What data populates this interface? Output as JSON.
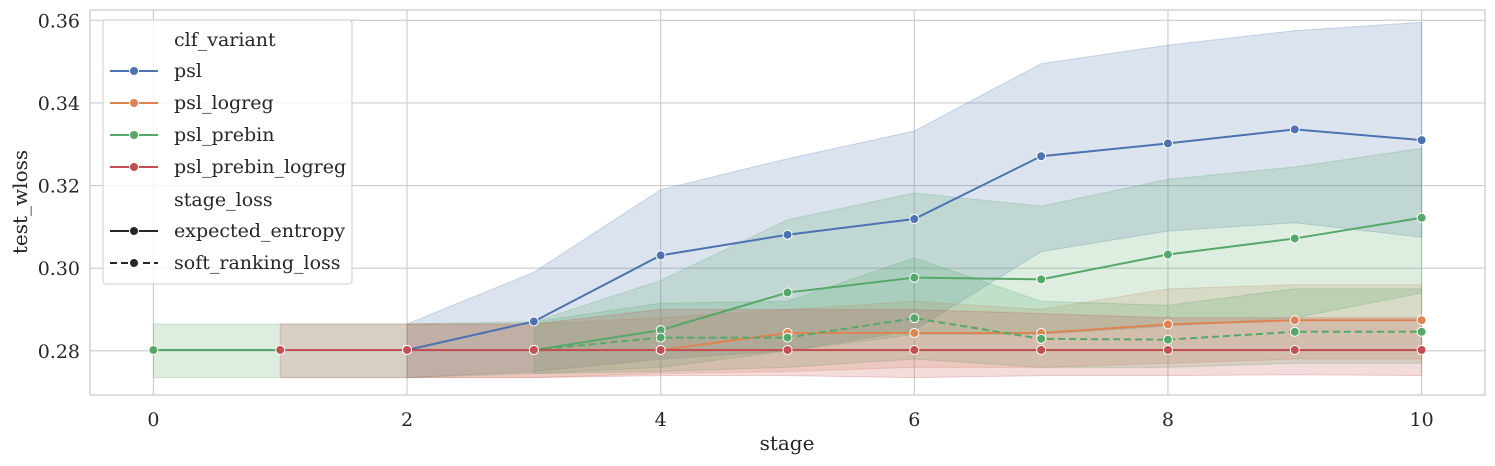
{
  "chart_data": {
    "type": "line",
    "title": "",
    "xlabel": "stage",
    "ylabel": "test_wloss",
    "xlim": [
      -0.5,
      10.5
    ],
    "ylim": [
      0.2693,
      0.3625
    ],
    "xticks": [
      0,
      2,
      4,
      6,
      8,
      10
    ],
    "yticks": [
      0.28,
      0.3,
      0.32,
      0.34,
      0.36
    ],
    "xtick_labels": [
      "0",
      "2",
      "4",
      "6",
      "8",
      "10"
    ],
    "ytick_labels": [
      "0.28",
      "0.30",
      "0.32",
      "0.34",
      "0.36"
    ],
    "grid": true,
    "legend": {
      "placement": "upper-left",
      "hue_title": "clf_variant",
      "style_title": "stage_loss",
      "variants": [
        {
          "name": "psl",
          "color": "#4c72b0"
        },
        {
          "name": "psl_logreg",
          "color": "#dd8452"
        },
        {
          "name": "psl_prebin",
          "color": "#55a868"
        },
        {
          "name": "psl_prebin_logreg",
          "color": "#c44e52"
        }
      ],
      "styles": [
        {
          "name": "expected_entropy",
          "dash": "solid"
        },
        {
          "name": "soft_ranking_loss",
          "dash": "dashed"
        }
      ]
    },
    "series": [
      {
        "name": "psl",
        "style": "expected_entropy",
        "color": "#4c72b0",
        "x": [
          2,
          3,
          4,
          5,
          6,
          7,
          8,
          9,
          10
        ],
        "values": [
          0.2802,
          0.2871,
          0.3031,
          0.3081,
          0.3119,
          0.3271,
          0.3302,
          0.3336,
          0.331
        ],
        "ci_low": [
          0.2735,
          0.275,
          0.278,
          0.28,
          0.285,
          0.304,
          0.309,
          0.311,
          0.3075
        ],
        "ci_high": [
          0.2865,
          0.299,
          0.319,
          0.3265,
          0.3332,
          0.3495,
          0.354,
          0.3575,
          0.3595
        ]
      },
      {
        "name": "psl_logreg",
        "style": "expected_entropy",
        "color": "#dd8452",
        "x": [
          2,
          3,
          4,
          5,
          6,
          7,
          8,
          9,
          10
        ],
        "values": [
          0.2802,
          0.2802,
          0.2802,
          0.2843,
          0.2843,
          0.2843,
          0.2864,
          0.2874,
          0.2874
        ],
        "ci_low": [
          0.2735,
          0.2735,
          0.2745,
          0.275,
          0.276,
          0.276,
          0.277,
          0.278,
          0.278
        ],
        "ci_high": [
          0.2865,
          0.2865,
          0.288,
          0.29,
          0.292,
          0.29,
          0.295,
          0.296,
          0.296
        ]
      },
      {
        "name": "psl_prebin",
        "style": "expected_entropy",
        "color": "#55a868",
        "x": [
          0,
          1,
          2,
          3,
          4,
          5,
          6,
          7,
          8,
          9,
          10
        ],
        "values": [
          0.2802,
          0.2802,
          0.2802,
          0.2802,
          0.285,
          0.2941,
          0.2977,
          0.2973,
          0.3033,
          0.3072,
          0.3122
        ],
        "ci_low": [
          0.2735,
          0.2735,
          0.2735,
          0.2745,
          0.276,
          0.28,
          0.284,
          0.284,
          0.286,
          0.288,
          0.294
        ],
        "ci_high": [
          0.2865,
          0.2865,
          0.2865,
          0.287,
          0.297,
          0.3117,
          0.3182,
          0.315,
          0.3215,
          0.3245,
          0.329
        ]
      },
      {
        "name": "psl_prebin",
        "style": "soft_ranking_loss",
        "color": "#55a868",
        "x": [
          3,
          4,
          5,
          6,
          7,
          8,
          9,
          10
        ],
        "values": [
          0.2802,
          0.2832,
          0.2832,
          0.2879,
          0.2829,
          0.2827,
          0.2846,
          0.2846
        ],
        "ci_low": [
          0.2745,
          0.275,
          0.276,
          0.278,
          0.276,
          0.276,
          0.277,
          0.277
        ],
        "ci_high": [
          0.287,
          0.2915,
          0.292,
          0.3025,
          0.292,
          0.291,
          0.295,
          0.295
        ]
      },
      {
        "name": "psl_prebin_logreg",
        "style": "expected_entropy",
        "color": "#c44e52",
        "x": [
          1,
          2,
          3,
          4,
          5,
          6,
          7,
          8,
          9,
          10
        ],
        "values": [
          0.2802,
          0.2802,
          0.2802,
          0.2802,
          0.2802,
          0.2802,
          0.2802,
          0.2802,
          0.2802,
          0.2802
        ],
        "ci_low": [
          0.2735,
          0.2735,
          0.2735,
          0.274,
          0.274,
          0.2735,
          0.274,
          0.274,
          0.2742,
          0.274
        ],
        "ci_high": [
          0.2865,
          0.2865,
          0.2865,
          0.29,
          0.29,
          0.29,
          0.289,
          0.288,
          0.288,
          0.288
        ]
      }
    ]
  }
}
